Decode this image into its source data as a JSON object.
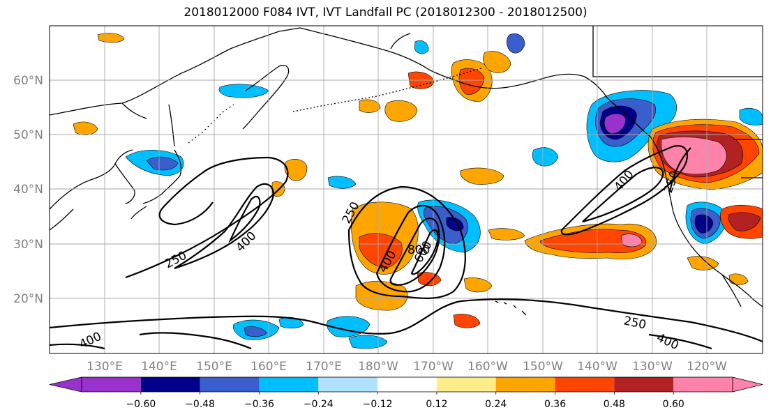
{
  "title": "2018012000 F084 IVT, IVT Landfall PC (2018012300 - 2018012500)",
  "lat_labels": [
    "60°N",
    "50°N",
    "40°N",
    "30°N",
    "20°N"
  ],
  "lon_labels": [
    "130°E",
    "140°E",
    "150°E",
    "160°E",
    "170°E",
    "180°W",
    "170°W",
    "160°W",
    "150°W",
    "140°W",
    "130°W",
    "120°W"
  ],
  "colorbar": {
    "colors": [
      "#9932cc",
      "#00008b",
      "#3a5fcd",
      "#00bfff",
      "#b0e2ff",
      "#ffffff",
      "#ffec8b",
      "#ffa500",
      "#ff4500",
      "#b22222",
      "#ff82ab"
    ],
    "tick_labels": [
      "−0.60",
      "−0.48",
      "−0.36",
      "−0.24",
      "−0.12",
      "0.12",
      "0.24",
      "0.36",
      "0.48",
      "0.60"
    ]
  },
  "contour_labels": [
    "250",
    "400",
    "250",
    "400",
    "800",
    "600",
    "250",
    "250",
    "400",
    "400",
    "400"
  ]
}
